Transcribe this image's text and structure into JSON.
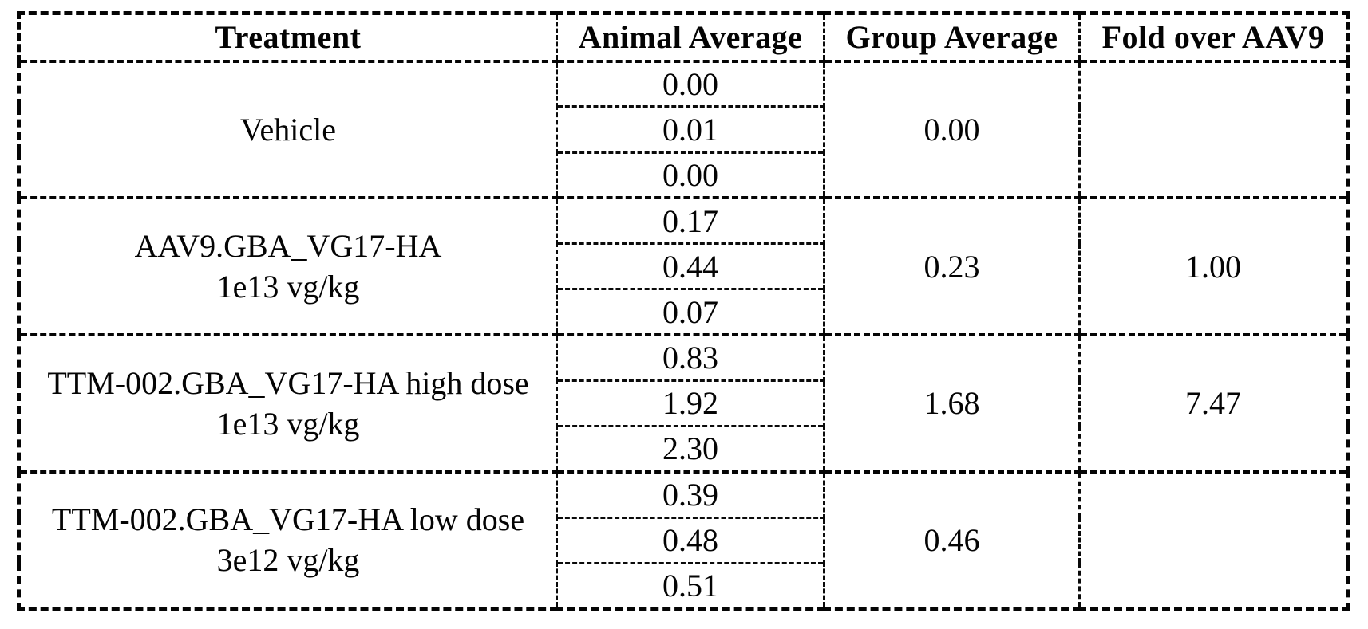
{
  "table": {
    "headers": [
      "Treatment",
      "Animal Average",
      "Group Average",
      "Fold over AAV9"
    ],
    "groups": [
      {
        "treatment_line1": "Vehicle",
        "treatment_line2": "",
        "animals": [
          "0.00",
          "0.01",
          "0.00"
        ],
        "group_average": "0.00",
        "fold": ""
      },
      {
        "treatment_line1": "AAV9.GBA_VG17-HA",
        "treatment_line2": "1e13 vg/kg",
        "animals": [
          "0.17",
          "0.44",
          "0.07"
        ],
        "group_average": "0.23",
        "fold": "1.00"
      },
      {
        "treatment_line1": "TTM-002.GBA_VG17-HA high dose",
        "treatment_line2": "1e13 vg/kg",
        "animals": [
          "0.83",
          "1.92",
          "2.30"
        ],
        "group_average": "1.68",
        "fold": "7.47"
      },
      {
        "treatment_line1": "TTM-002.GBA_VG17-HA low dose",
        "treatment_line2": "3e12 vg/kg",
        "animals": [
          "0.39",
          "0.48",
          "0.51"
        ],
        "group_average": "0.46",
        "fold": ""
      }
    ],
    "ink_color": "#040404",
    "background_color": "#ffffff"
  }
}
